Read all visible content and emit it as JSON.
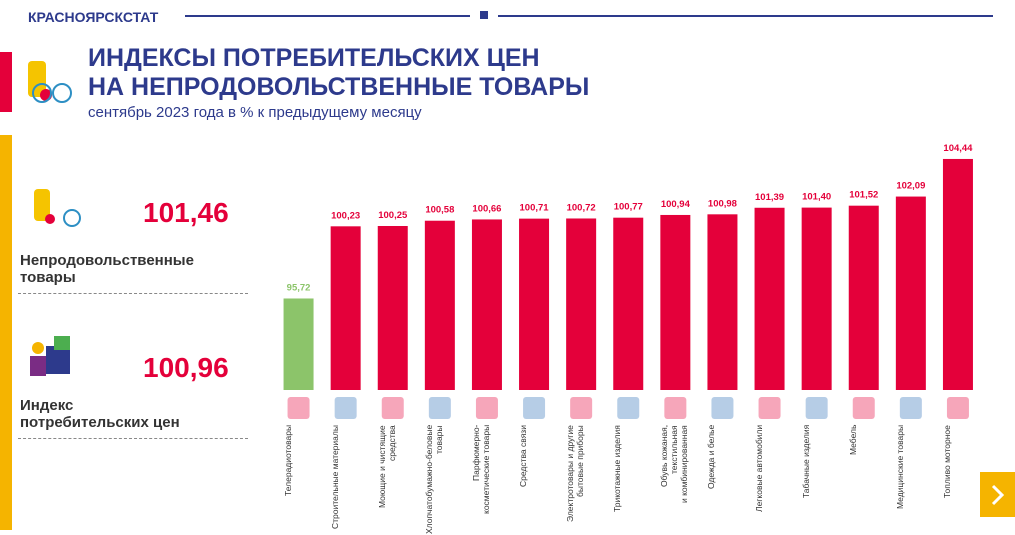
{
  "header": {
    "brand": "КРАСНОЯРСКСТАТ",
    "title_line1": "ИНДЕКСЫ ПОТРЕБИТЕЛЬСКИХ ЦЕН",
    "title_line2": "НА НЕПРОДОВОЛЬСТВЕННЫЕ ТОВАРЫ",
    "subtitle": "сентябрь 2023 года в % к предыдущему месяцу"
  },
  "summary": [
    {
      "value_label": "101,46",
      "label": "Непродовольственные\nтовары"
    },
    {
      "value_label": "100,96",
      "label": "Индекс\nпотребительских цен"
    }
  ],
  "chart_data": {
    "type": "bar",
    "categories": [
      "Телерадиотовары",
      "Строительные материалы",
      "Моющие и чистящие\nсредства",
      "Хлопчатобумажно-беловые товары",
      "Парфюмерно-\nкосметические товары",
      "Средства связи",
      "Электротовары и другие\nбытовые приборы",
      "Трикотажные изделия",
      "Обувь кожаная,\nтекстильная\nи комбинированная",
      "Одежда и белье",
      "Легковые автомобили",
      "Табачные изделия",
      "Мебель",
      "Медицинские товары",
      "Топливо моторное"
    ],
    "values": [
      95.72,
      100.23,
      100.25,
      100.58,
      100.66,
      100.71,
      100.72,
      100.77,
      100.94,
      100.98,
      101.39,
      101.4,
      101.52,
      102.09,
      104.44
    ],
    "value_labels": [
      "95,72",
      "100,23",
      "100,25",
      "100,58",
      "100,66",
      "100,71",
      "100,72",
      "100,77",
      "100,94",
      "100,98",
      "101,39",
      "101,40",
      "101,52",
      "102,09",
      "104,44"
    ],
    "colors": [
      "#8cc46a",
      "#e4003a",
      "#e4003a",
      "#e4003a",
      "#e4003a",
      "#e4003a",
      "#e4003a",
      "#e4003a",
      "#e4003a",
      "#e4003a",
      "#e4003a",
      "#e4003a",
      "#e4003a",
      "#e4003a",
      "#e4003a"
    ],
    "ylim": [
      90,
      105
    ]
  }
}
